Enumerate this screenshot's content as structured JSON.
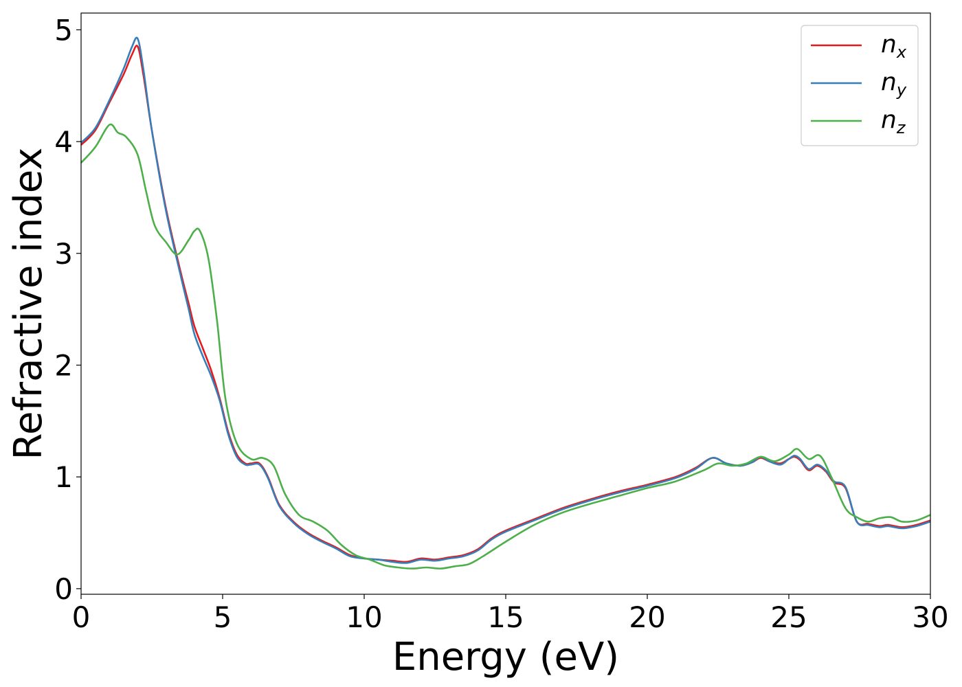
{
  "chart_data": {
    "type": "line",
    "title": "",
    "xlabel": "Energy (eV)",
    "ylabel": "Refractive index",
    "xlim": [
      0,
      30
    ],
    "ylim": [
      -0.05,
      5.15
    ],
    "xticks": [
      0,
      5,
      10,
      15,
      20,
      25,
      30
    ],
    "yticks": [
      0,
      1,
      2,
      3,
      4,
      5
    ],
    "grid": false,
    "legend_position": "top-right",
    "series": [
      {
        "name": "n_x",
        "label_base": "n",
        "label_sub": "x",
        "color": "#e41a1c",
        "x": [
          0,
          0.5,
          1.0,
          1.5,
          1.8,
          2.0,
          2.2,
          2.5,
          3.0,
          3.5,
          3.8,
          4.0,
          4.3,
          4.6,
          4.9,
          5.2,
          5.5,
          5.8,
          6.0,
          6.3,
          6.6,
          7.0,
          7.5,
          8.0,
          8.5,
          9.0,
          9.5,
          10.0,
          10.5,
          11.0,
          11.5,
          12.0,
          12.5,
          13.0,
          13.5,
          14.0,
          14.5,
          15.0,
          16.0,
          17.0,
          18.0,
          19.0,
          20.0,
          21.0,
          21.7,
          22.3,
          22.8,
          23.3,
          23.7,
          24.0,
          24.3,
          24.7,
          25.0,
          25.2,
          25.4,
          25.7,
          26.0,
          26.3,
          26.6,
          27.0,
          27.4,
          27.8,
          28.2,
          28.5,
          29.0,
          29.5,
          30.0
        ],
        "y": [
          3.97,
          4.1,
          4.35,
          4.6,
          4.78,
          4.85,
          4.6,
          4.1,
          3.4,
          2.85,
          2.55,
          2.35,
          2.15,
          1.95,
          1.7,
          1.4,
          1.2,
          1.12,
          1.12,
          1.12,
          1.0,
          0.75,
          0.6,
          0.5,
          0.43,
          0.37,
          0.3,
          0.27,
          0.26,
          0.25,
          0.24,
          0.27,
          0.26,
          0.28,
          0.3,
          0.35,
          0.45,
          0.52,
          0.62,
          0.72,
          0.8,
          0.87,
          0.93,
          1.0,
          1.08,
          1.17,
          1.12,
          1.1,
          1.13,
          1.17,
          1.14,
          1.12,
          1.16,
          1.18,
          1.15,
          1.06,
          1.1,
          1.05,
          0.95,
          0.9,
          0.6,
          0.58,
          0.56,
          0.57,
          0.55,
          0.57,
          0.61
        ]
      },
      {
        "name": "n_y",
        "label_base": "n",
        "label_sub": "y",
        "color": "#377eb8",
        "x": [
          0,
          0.5,
          1.0,
          1.5,
          1.8,
          2.0,
          2.2,
          2.5,
          3.0,
          3.5,
          3.8,
          4.0,
          4.3,
          4.6,
          4.9,
          5.2,
          5.5,
          5.8,
          6.0,
          6.3,
          6.6,
          7.0,
          7.5,
          8.0,
          8.5,
          9.0,
          9.5,
          10.0,
          10.5,
          11.0,
          11.5,
          12.0,
          12.5,
          13.0,
          13.5,
          14.0,
          14.5,
          15.0,
          16.0,
          17.0,
          18.0,
          19.0,
          20.0,
          21.0,
          21.7,
          22.3,
          22.8,
          23.3,
          23.7,
          24.0,
          24.3,
          24.7,
          25.0,
          25.2,
          25.4,
          25.7,
          26.0,
          26.3,
          26.6,
          27.0,
          27.4,
          27.8,
          28.2,
          28.5,
          29.0,
          29.5,
          30.0
        ],
        "y": [
          3.99,
          4.12,
          4.37,
          4.65,
          4.85,
          4.92,
          4.65,
          4.1,
          3.38,
          2.82,
          2.5,
          2.28,
          2.08,
          1.9,
          1.68,
          1.38,
          1.18,
          1.11,
          1.11,
          1.11,
          0.99,
          0.74,
          0.59,
          0.49,
          0.42,
          0.36,
          0.29,
          0.27,
          0.26,
          0.24,
          0.23,
          0.26,
          0.25,
          0.27,
          0.29,
          0.34,
          0.44,
          0.51,
          0.61,
          0.71,
          0.79,
          0.86,
          0.92,
          0.99,
          1.07,
          1.17,
          1.12,
          1.1,
          1.13,
          1.18,
          1.14,
          1.11,
          1.16,
          1.19,
          1.16,
          1.07,
          1.11,
          1.06,
          0.96,
          0.91,
          0.6,
          0.57,
          0.55,
          0.56,
          0.54,
          0.56,
          0.6
        ]
      },
      {
        "name": "n_z",
        "label_base": "n",
        "label_sub": "z",
        "color": "#4daf4a",
        "x": [
          0,
          0.5,
          1.0,
          1.3,
          1.6,
          2.0,
          2.3,
          2.6,
          3.0,
          3.4,
          3.8,
          4.0,
          4.2,
          4.5,
          4.8,
          5.1,
          5.5,
          6.0,
          6.4,
          6.8,
          7.2,
          7.7,
          8.2,
          8.7,
          9.2,
          9.7,
          10.2,
          10.7,
          11.2,
          11.7,
          12.2,
          12.7,
          13.2,
          13.7,
          14.2,
          15.0,
          16.0,
          17.0,
          18.0,
          19.0,
          20.0,
          21.0,
          22.0,
          22.5,
          23.0,
          23.5,
          24.0,
          24.5,
          25.0,
          25.3,
          25.7,
          26.1,
          26.5,
          27.0,
          27.4,
          27.8,
          28.2,
          28.6,
          29.0,
          29.5,
          30.0
        ],
        "y": [
          3.81,
          3.95,
          4.15,
          4.08,
          4.04,
          3.88,
          3.55,
          3.25,
          3.1,
          2.99,
          3.12,
          3.2,
          3.2,
          2.95,
          2.4,
          1.7,
          1.3,
          1.16,
          1.17,
          1.1,
          0.85,
          0.66,
          0.6,
          0.52,
          0.39,
          0.3,
          0.26,
          0.21,
          0.19,
          0.18,
          0.19,
          0.18,
          0.2,
          0.22,
          0.29,
          0.42,
          0.57,
          0.68,
          0.76,
          0.83,
          0.9,
          0.96,
          1.06,
          1.12,
          1.1,
          1.12,
          1.18,
          1.14,
          1.2,
          1.25,
          1.16,
          1.19,
          1.0,
          0.72,
          0.64,
          0.6,
          0.63,
          0.64,
          0.6,
          0.61,
          0.66
        ]
      }
    ]
  }
}
